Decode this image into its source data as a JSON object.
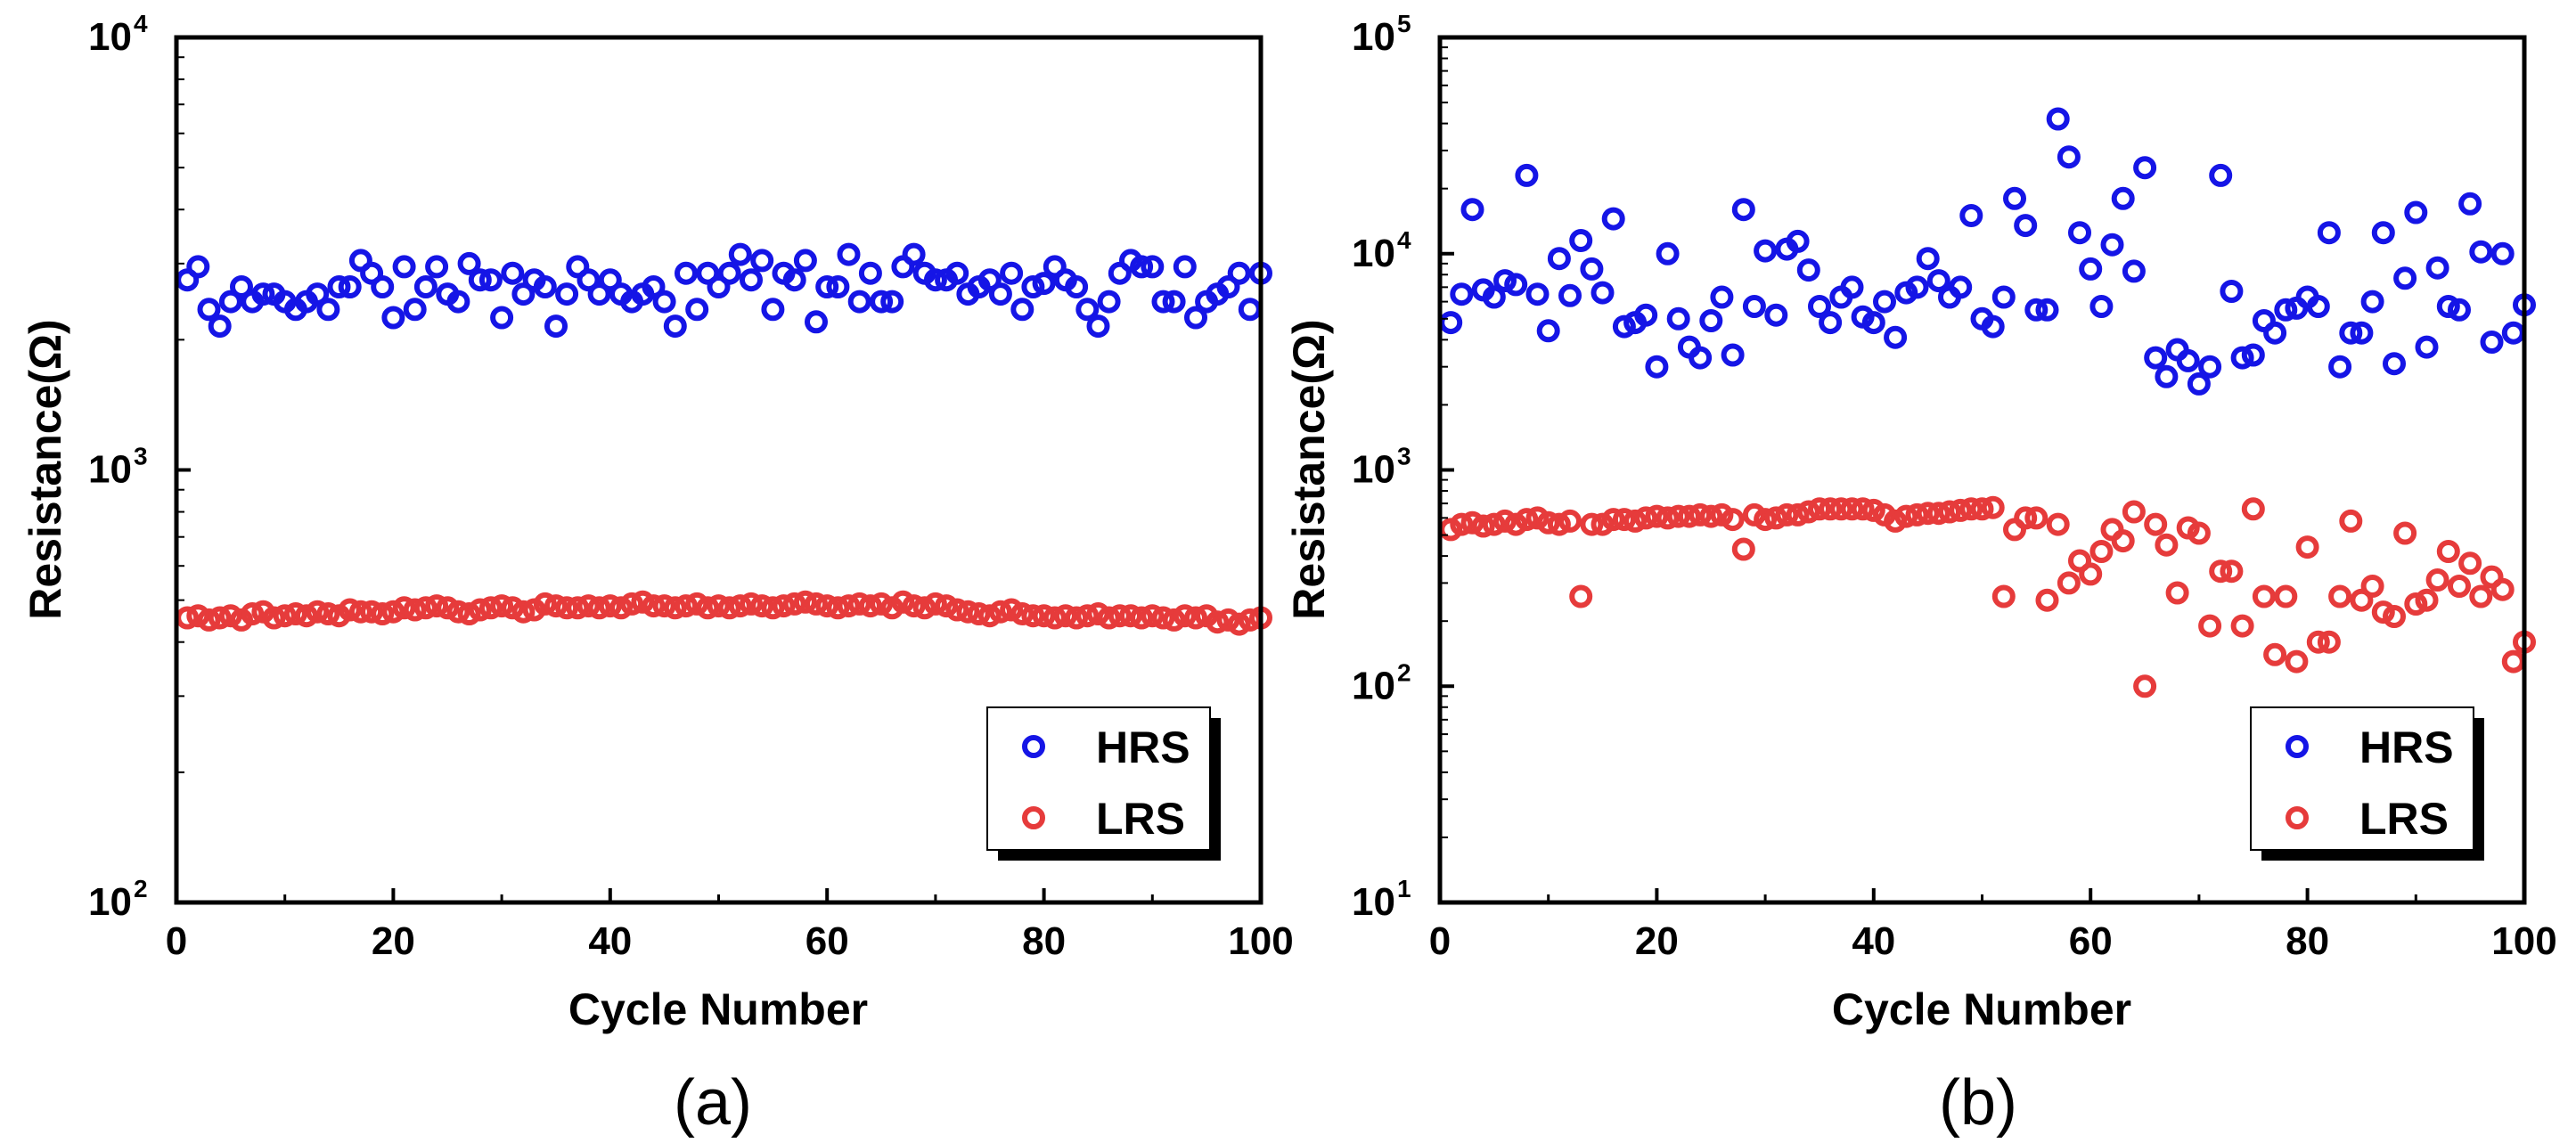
{
  "chart_data": [
    {
      "type": "scatter",
      "panel_label": "(a)",
      "xlabel": "Cycle Number",
      "ylabel": "Resistance(Ω)",
      "xlim": [
        0,
        100
      ],
      "ylim": [
        100,
        10000
      ],
      "yscale": "log",
      "xticks": [
        "0",
        "20",
        "40",
        "60",
        "80",
        "100"
      ],
      "yticks": [
        {
          "base": "10",
          "exp": "2"
        },
        {
          "base": "10",
          "exp": "3"
        },
        {
          "base": "10",
          "exp": "4"
        }
      ],
      "legend_position": "bottom-right",
      "series": [
        {
          "name": "HRS",
          "color": "#1515e6",
          "x": [
            1,
            2,
            3,
            4,
            5,
            6,
            7,
            8,
            9,
            10,
            11,
            12,
            13,
            14,
            15,
            16,
            17,
            18,
            19,
            20,
            21,
            22,
            23,
            24,
            25,
            26,
            27,
            28,
            29,
            30,
            31,
            32,
            33,
            34,
            35,
            36,
            37,
            38,
            39,
            40,
            41,
            42,
            43,
            44,
            45,
            46,
            47,
            48,
            49,
            50,
            51,
            52,
            53,
            54,
            55,
            56,
            57,
            58,
            59,
            60,
            61,
            62,
            63,
            64,
            65,
            66,
            67,
            68,
            69,
            70,
            71,
            72,
            73,
            74,
            75,
            76,
            77,
            78,
            79,
            80,
            81,
            82,
            83,
            84,
            85,
            86,
            87,
            88,
            89,
            90,
            91,
            92,
            93,
            94,
            95,
            96,
            97,
            98,
            99,
            100
          ],
          "values": [
            2750,
            2950,
            2350,
            2150,
            2450,
            2650,
            2450,
            2550,
            2550,
            2450,
            2350,
            2450,
            2550,
            2350,
            2650,
            2650,
            3050,
            2850,
            2650,
            2250,
            2950,
            2350,
            2650,
            2950,
            2550,
            2450,
            3000,
            2750,
            2750,
            2250,
            2850,
            2550,
            2750,
            2650,
            2150,
            2550,
            2950,
            2750,
            2550,
            2750,
            2550,
            2450,
            2550,
            2650,
            2450,
            2150,
            2850,
            2350,
            2850,
            2650,
            2850,
            3150,
            2750,
            3050,
            2350,
            2850,
            2750,
            3050,
            2200,
            2650,
            2650,
            3150,
            2450,
            2850,
            2450,
            2450,
            2950,
            3150,
            2850,
            2750,
            2750,
            2850,
            2550,
            2650,
            2750,
            2550,
            2850,
            2350,
            2650,
            2700,
            2950,
            2750,
            2650,
            2350,
            2150,
            2450,
            2850,
            3050,
            2950,
            2950,
            2450,
            2450,
            2950,
            2250,
            2450,
            2550,
            2650,
            2850,
            2350,
            2850
          ]
        },
        {
          "name": "LRS",
          "color": "#e63b3b",
          "x": [
            1,
            2,
            3,
            4,
            5,
            6,
            7,
            8,
            9,
            10,
            11,
            12,
            13,
            14,
            15,
            16,
            17,
            18,
            19,
            20,
            21,
            22,
            23,
            24,
            25,
            26,
            27,
            28,
            29,
            30,
            31,
            32,
            33,
            34,
            35,
            36,
            37,
            38,
            39,
            40,
            41,
            42,
            43,
            44,
            45,
            46,
            47,
            48,
            49,
            50,
            51,
            52,
            53,
            54,
            55,
            56,
            57,
            58,
            59,
            60,
            61,
            62,
            63,
            64,
            65,
            66,
            67,
            68,
            69,
            70,
            71,
            72,
            73,
            74,
            75,
            76,
            77,
            78,
            79,
            80,
            81,
            82,
            83,
            84,
            85,
            86,
            87,
            88,
            89,
            90,
            91,
            92,
            93,
            94,
            95,
            96,
            97,
            98,
            99,
            100
          ],
          "values": [
            455,
            460,
            450,
            455,
            460,
            450,
            465,
            470,
            455,
            460,
            465,
            460,
            470,
            465,
            460,
            475,
            470,
            470,
            465,
            470,
            480,
            475,
            480,
            485,
            480,
            470,
            465,
            475,
            480,
            485,
            480,
            470,
            475,
            490,
            485,
            480,
            480,
            485,
            480,
            485,
            480,
            490,
            495,
            485,
            485,
            480,
            485,
            490,
            480,
            485,
            480,
            485,
            490,
            485,
            480,
            485,
            490,
            495,
            490,
            485,
            480,
            485,
            490,
            485,
            490,
            480,
            495,
            485,
            480,
            490,
            485,
            475,
            470,
            465,
            460,
            470,
            475,
            465,
            460,
            460,
            455,
            460,
            455,
            460,
            465,
            455,
            460,
            460,
            455,
            460,
            455,
            450,
            460,
            455,
            460,
            445,
            450,
            440,
            450,
            455
          ]
        }
      ]
    },
    {
      "type": "scatter",
      "panel_label": "(b)",
      "xlabel": "Cycle Number",
      "ylabel": "Resistance(Ω)",
      "xlim": [
        0,
        100
      ],
      "ylim": [
        10,
        100000
      ],
      "yscale": "log",
      "xticks": [
        "0",
        "20",
        "40",
        "60",
        "80",
        "100"
      ],
      "yticks": [
        {
          "base": "10",
          "exp": "1"
        },
        {
          "base": "10",
          "exp": "2"
        },
        {
          "base": "10",
          "exp": "3"
        },
        {
          "base": "10",
          "exp": "4"
        },
        {
          "base": "10",
          "exp": "5"
        }
      ],
      "legend_position": "bottom-right",
      "series": [
        {
          "name": "HRS",
          "color": "#1515e6",
          "x": [
            1,
            2,
            3,
            4,
            5,
            6,
            7,
            8,
            9,
            10,
            11,
            12,
            13,
            14,
            15,
            16,
            17,
            18,
            19,
            20,
            21,
            22,
            23,
            24,
            25,
            26,
            27,
            28,
            29,
            30,
            31,
            32,
            33,
            34,
            35,
            36,
            37,
            38,
            39,
            40,
            41,
            42,
            43,
            44,
            45,
            46,
            47,
            48,
            49,
            50,
            51,
            52,
            53,
            54,
            55,
            56,
            57,
            58,
            59,
            60,
            61,
            62,
            63,
            64,
            65,
            66,
            67,
            68,
            69,
            70,
            71,
            72,
            73,
            74,
            75,
            76,
            77,
            78,
            79,
            80,
            81,
            82,
            83,
            84,
            85,
            86,
            87,
            88,
            89,
            90,
            91,
            92,
            93,
            94,
            95,
            96,
            97,
            98,
            99,
            100
          ],
          "values": [
            4800,
            6500,
            16000,
            6800,
            6300,
            7500,
            7200,
            23000,
            6500,
            4400,
            9500,
            6400,
            11500,
            8500,
            6600,
            14500,
            4600,
            4800,
            5200,
            3000,
            10000,
            5000,
            3700,
            3300,
            4900,
            6300,
            3400,
            16000,
            5700,
            10300,
            5200,
            10500,
            11400,
            8400,
            5700,
            4800,
            6300,
            7000,
            5100,
            4800,
            6000,
            4100,
            6600,
            7000,
            9500,
            7500,
            6300,
            7000,
            15000,
            5000,
            4600,
            6300,
            18000,
            13500,
            5500,
            5500,
            42000,
            28000,
            12500,
            8500,
            5700,
            11000,
            18000,
            8300,
            25000,
            3300,
            2700,
            3600,
            3200,
            2500,
            3000,
            23000,
            6700,
            3300,
            3400,
            4900,
            4300,
            5500,
            5600,
            6300,
            5700,
            12500,
            3000,
            4300,
            4300,
            6000,
            12500,
            3100,
            7700,
            15500,
            3700,
            8600,
            5700,
            5500,
            17000,
            10200,
            3900,
            10000,
            4300,
            5800
          ]
        },
        {
          "name": "LRS",
          "color": "#e63b3b",
          "x": [
            1,
            2,
            3,
            4,
            5,
            6,
            7,
            8,
            9,
            10,
            11,
            12,
            13,
            14,
            15,
            16,
            17,
            18,
            19,
            20,
            21,
            22,
            23,
            24,
            25,
            26,
            27,
            28,
            29,
            30,
            31,
            32,
            33,
            34,
            35,
            36,
            37,
            38,
            39,
            40,
            41,
            42,
            43,
            44,
            45,
            46,
            47,
            48,
            49,
            50,
            51,
            52,
            53,
            54,
            55,
            56,
            57,
            58,
            59,
            60,
            61,
            62,
            63,
            64,
            65,
            66,
            67,
            68,
            69,
            70,
            71,
            72,
            73,
            74,
            75,
            76,
            77,
            78,
            79,
            80,
            81,
            82,
            83,
            84,
            85,
            86,
            87,
            88,
            89,
            90,
            91,
            92,
            93,
            94,
            95,
            96,
            97,
            98,
            99,
            100
          ],
          "values": [
            530,
            560,
            570,
            550,
            560,
            580,
            560,
            590,
            600,
            570,
            560,
            580,
            260,
            560,
            560,
            590,
            590,
            580,
            600,
            610,
            600,
            610,
            610,
            620,
            610,
            620,
            590,
            430,
            620,
            590,
            600,
            620,
            620,
            640,
            660,
            660,
            660,
            660,
            660,
            650,
            620,
            580,
            610,
            620,
            630,
            630,
            640,
            650,
            660,
            660,
            670,
            260,
            530,
            600,
            600,
            250,
            560,
            300,
            380,
            330,
            420,
            530,
            470,
            640,
            100,
            560,
            450,
            270,
            540,
            510,
            190,
            340,
            340,
            190,
            660,
            260,
            140,
            260,
            130,
            440,
            160,
            160,
            260,
            580,
            250,
            290,
            220,
            210,
            510,
            240,
            250,
            310,
            420,
            290,
            370,
            260,
            320,
            280,
            130,
            160
          ]
        }
      ]
    }
  ]
}
